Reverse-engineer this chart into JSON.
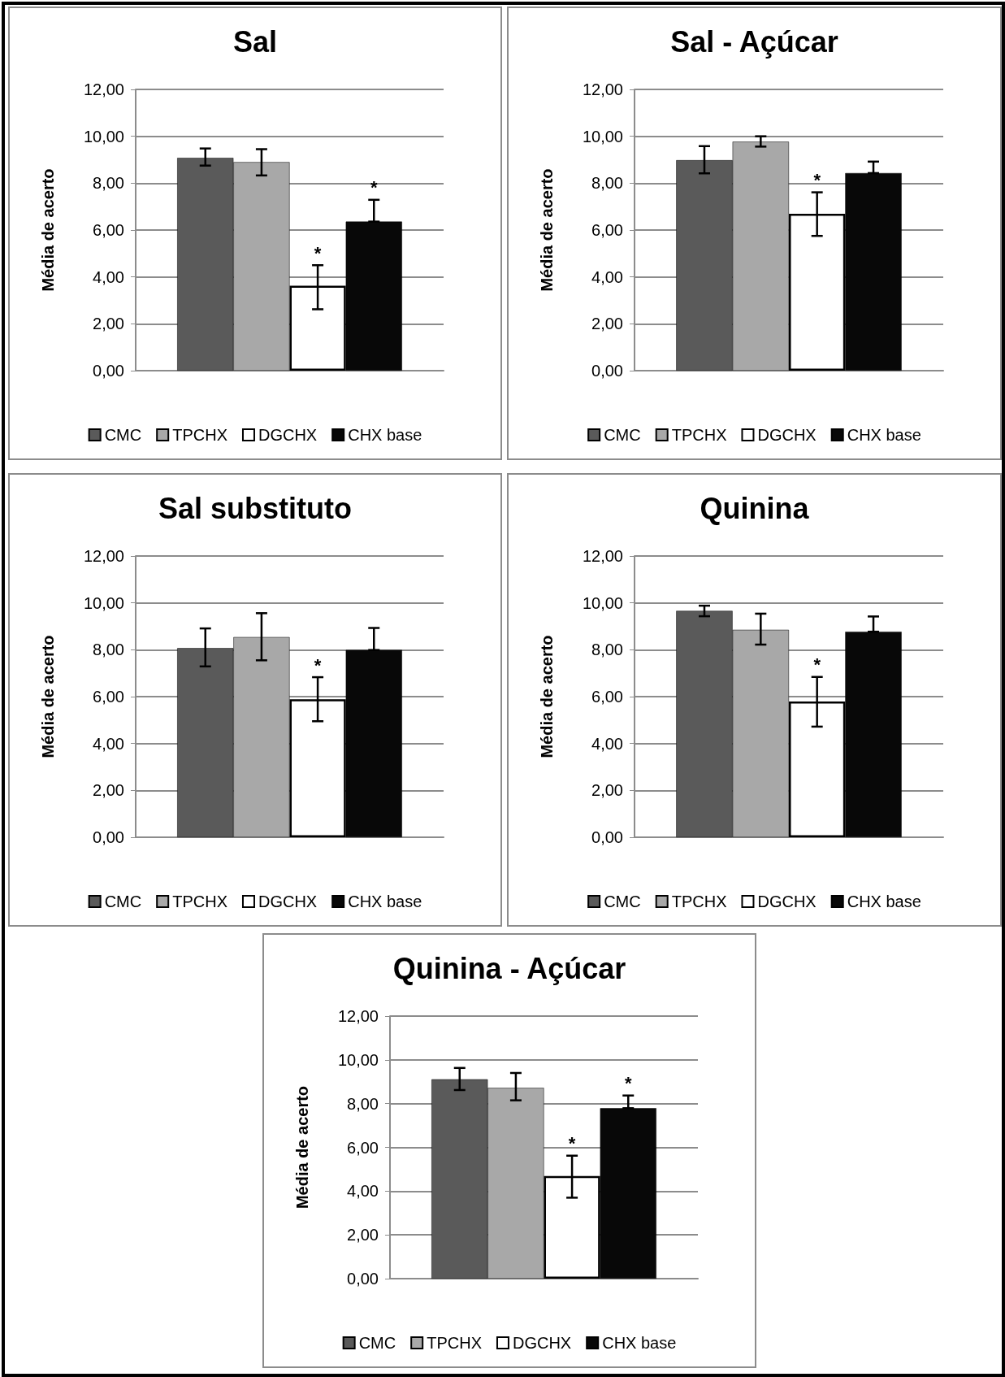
{
  "chart_data": [
    {
      "type": "bar",
      "title": "Sal",
      "ylabel": "Média de acerto",
      "categories": [
        null
      ],
      "ylim": [
        0,
        12
      ],
      "yticks": [
        {
          "value": 0,
          "label": "0,00"
        },
        {
          "value": 2,
          "label": "2,00"
        },
        {
          "value": 4,
          "label": "4,00"
        },
        {
          "value": 6,
          "label": "6,00"
        },
        {
          "value": 8,
          "label": "8,00"
        },
        {
          "value": 10,
          "label": "10,00"
        },
        {
          "value": 12,
          "label": "12,00"
        }
      ],
      "grid": "y",
      "legend": "bottom",
      "series": [
        {
          "name": "CMC",
          "color": "#5a5a5a",
          "values": [
            9.08
          ],
          "errors": [
            [
              8.75,
              9.48
            ]
          ]
        },
        {
          "name": "TPCHX",
          "color": "#a8a8a8",
          "values": [
            8.9
          ],
          "errors": [
            [
              8.33,
              9.45
            ]
          ]
        },
        {
          "name": "DGCHX",
          "color": "#ffffff",
          "values": [
            3.62
          ],
          "errors": [
            [
              2.62,
              4.5
            ]
          ],
          "value_labels": [
            "*"
          ]
        },
        {
          "name": "CHX base",
          "color": "#080808",
          "values": [
            6.36
          ],
          "errors": [
            [
              6.36,
              7.29
            ]
          ],
          "value_labels": [
            "*"
          ]
        }
      ]
    },
    {
      "type": "bar",
      "title": "Sal - Açúcar",
      "ylabel": "Média de acerto",
      "categories": [
        null
      ],
      "ylim": [
        0,
        12
      ],
      "yticks": [
        {
          "value": 0,
          "label": "0,00"
        },
        {
          "value": 2,
          "label": "2,00"
        },
        {
          "value": 4,
          "label": "4,00"
        },
        {
          "value": 6,
          "label": "6,00"
        },
        {
          "value": 8,
          "label": "8,00"
        },
        {
          "value": 10,
          "label": "10,00"
        },
        {
          "value": 12,
          "label": "12,00"
        }
      ],
      "grid": "y",
      "legend": "bottom",
      "series": [
        {
          "name": "CMC",
          "color": "#5a5a5a",
          "values": [
            8.98
          ],
          "errors": [
            [
              8.42,
              9.58
            ]
          ]
        },
        {
          "name": "TPCHX",
          "color": "#a8a8a8",
          "values": [
            9.77
          ],
          "errors": [
            [
              9.56,
              10.0
            ]
          ]
        },
        {
          "name": "DGCHX",
          "color": "#ffffff",
          "values": [
            6.69
          ],
          "errors": [
            [
              5.75,
              7.61
            ]
          ],
          "value_labels": [
            "*"
          ]
        },
        {
          "name": "CHX base",
          "color": "#080808",
          "values": [
            8.43
          ],
          "errors": [
            [
              8.43,
              8.92
            ]
          ]
        }
      ]
    },
    {
      "type": "bar",
      "title": "Sal substituto",
      "ylabel": "Média de acerto",
      "categories": [
        null
      ],
      "ylim": [
        0,
        12
      ],
      "yticks": [
        {
          "value": 0,
          "label": "0,00"
        },
        {
          "value": 2,
          "label": "2,00"
        },
        {
          "value": 4,
          "label": "4,00"
        },
        {
          "value": 6,
          "label": "6,00"
        },
        {
          "value": 8,
          "label": "8,00"
        },
        {
          "value": 10,
          "label": "10,00"
        },
        {
          "value": 12,
          "label": "12,00"
        }
      ],
      "grid": "y",
      "legend": "bottom",
      "series": [
        {
          "name": "CMC",
          "color": "#5a5a5a",
          "values": [
            8.07
          ],
          "errors": [
            [
              7.29,
              8.91
            ]
          ]
        },
        {
          "name": "TPCHX",
          "color": "#a8a8a8",
          "values": [
            8.54
          ],
          "errors": [
            [
              7.55,
              9.56
            ]
          ]
        },
        {
          "name": "DGCHX",
          "color": "#ffffff",
          "values": [
            5.89
          ],
          "errors": [
            [
              4.95,
              6.83
            ]
          ],
          "value_labels": [
            "*"
          ]
        },
        {
          "name": "CHX base",
          "color": "#080808",
          "values": [
            7.99
          ],
          "errors": [
            [
              7.99,
              8.93
            ]
          ]
        }
      ]
    },
    {
      "type": "bar",
      "title": "Quinina",
      "ylabel": "Média de acerto",
      "categories": [
        null
      ],
      "ylim": [
        0,
        12
      ],
      "yticks": [
        {
          "value": 0,
          "label": "0,00"
        },
        {
          "value": 2,
          "label": "2,00"
        },
        {
          "value": 4,
          "label": "4,00"
        },
        {
          "value": 6,
          "label": "6,00"
        },
        {
          "value": 8,
          "label": "8,00"
        },
        {
          "value": 10,
          "label": "10,00"
        },
        {
          "value": 12,
          "label": "12,00"
        }
      ],
      "grid": "y",
      "legend": "bottom",
      "series": [
        {
          "name": "CMC",
          "color": "#5a5a5a",
          "values": [
            9.66
          ],
          "errors": [
            [
              9.43,
              9.88
            ]
          ]
        },
        {
          "name": "TPCHX",
          "color": "#a8a8a8",
          "values": [
            8.85
          ],
          "errors": [
            [
              8.22,
              9.54
            ]
          ]
        },
        {
          "name": "DGCHX",
          "color": "#ffffff",
          "values": [
            5.79
          ],
          "errors": [
            [
              4.72,
              6.84
            ]
          ],
          "value_labels": [
            "*"
          ]
        },
        {
          "name": "CHX base",
          "color": "#080808",
          "values": [
            8.77
          ],
          "errors": [
            [
              8.77,
              9.42
            ]
          ]
        }
      ]
    },
    {
      "type": "bar",
      "title": "Quinina - Açúcar",
      "ylabel": "Média de acerto",
      "categories": [
        null
      ],
      "ylim": [
        0,
        12
      ],
      "yticks": [
        {
          "value": 0,
          "label": "0,00"
        },
        {
          "value": 2,
          "label": "2,00"
        },
        {
          "value": 4,
          "label": "4,00"
        },
        {
          "value": 6,
          "label": "6,00"
        },
        {
          "value": 8,
          "label": "8,00"
        },
        {
          "value": 10,
          "label": "10,00"
        },
        {
          "value": 12,
          "label": "12,00"
        }
      ],
      "grid": "y",
      "legend": "bottom",
      "series": [
        {
          "name": "CMC",
          "color": "#5a5a5a",
          "values": [
            9.11
          ],
          "errors": [
            [
              8.62,
              9.63
            ]
          ]
        },
        {
          "name": "TPCHX",
          "color": "#a8a8a8",
          "values": [
            8.72
          ],
          "errors": [
            [
              8.15,
              9.4
            ]
          ]
        },
        {
          "name": "DGCHX",
          "color": "#ffffff",
          "values": [
            4.69
          ],
          "errors": [
            [
              3.7,
              5.62
            ]
          ],
          "value_labels": [
            "*"
          ]
        },
        {
          "name": "CHX base",
          "color": "#080808",
          "values": [
            7.79
          ],
          "errors": [
            [
              7.79,
              8.37
            ]
          ],
          "value_labels": [
            "*"
          ]
        }
      ]
    }
  ]
}
